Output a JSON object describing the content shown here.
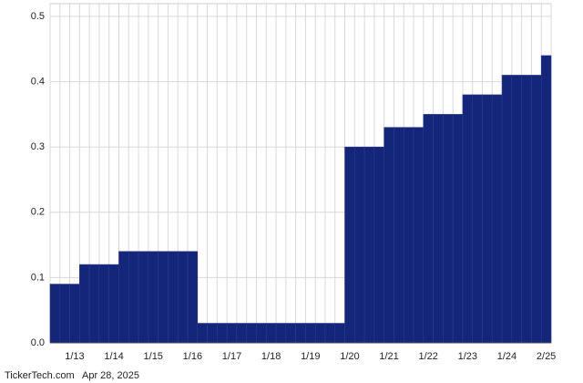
{
  "chart_data": {
    "type": "bar",
    "categories": [
      null,
      null,
      "1/13",
      null,
      null,
      null,
      "1/14",
      null,
      null,
      null,
      "1/15",
      null,
      null,
      null,
      "1/16",
      null,
      null,
      null,
      "1/17",
      null,
      null,
      null,
      "1/18",
      null,
      null,
      null,
      "1/19",
      null,
      null,
      null,
      "1/20",
      null,
      null,
      null,
      "1/21",
      null,
      null,
      null,
      "1/22",
      null,
      null,
      null,
      "1/23",
      null,
      null,
      null,
      "1/24",
      null,
      null,
      null,
      "2/25"
    ],
    "values": [
      0.09,
      0.09,
      0.09,
      0.12,
      0.12,
      0.12,
      0.12,
      0.14,
      0.14,
      0.14,
      0.14,
      0.14,
      0.14,
      0.14,
      0.14,
      0.03,
      0.03,
      0.03,
      0.03,
      0.03,
      0.03,
      0.03,
      0.03,
      0.03,
      0.03,
      0.03,
      0.03,
      0.03,
      0.03,
      0.03,
      0.3,
      0.3,
      0.3,
      0.3,
      0.33,
      0.33,
      0.33,
      0.33,
      0.35,
      0.35,
      0.35,
      0.35,
      0.38,
      0.38,
      0.38,
      0.38,
      0.41,
      0.41,
      0.41,
      0.41,
      0.44
    ],
    "color": "#14267a",
    "ylim": [
      0,
      0.5
    ],
    "yticks": [
      {
        "value": 0,
        "label": "0.0"
      },
      0.1,
      0.2,
      0.3,
      0.4,
      0.5
    ],
    "grid": true,
    "source": "TickerTech.com",
    "date": "Apr 28, 2025"
  }
}
